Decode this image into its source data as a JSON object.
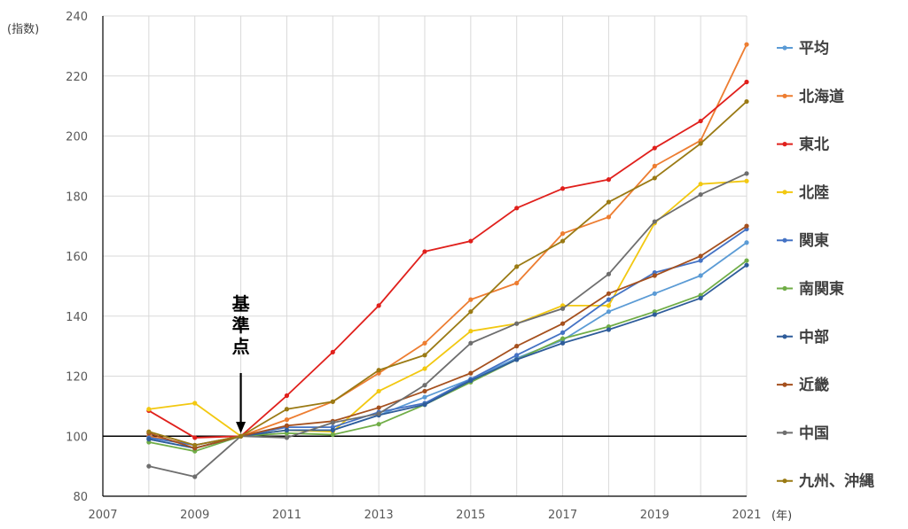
{
  "chart_data": {
    "type": "line",
    "y_unit": "(指数)",
    "x_unit": "(年)",
    "xlim": [
      2007,
      2021
    ],
    "ylim": [
      80,
      240
    ],
    "x_ticks": [
      "2007",
      "2009",
      "2011",
      "2013",
      "2015",
      "2017",
      "2019",
      "2021"
    ],
    "y_ticks": [
      "80",
      "100",
      "120",
      "140",
      "160",
      "180",
      "200",
      "220",
      "240"
    ],
    "grid": true,
    "legend_position": "right",
    "annotation": {
      "text": "基準点",
      "x": 2010,
      "y": 100
    },
    "reference_line": 100,
    "x": [
      2008,
      2009,
      2010,
      2011,
      2012,
      2013,
      2014,
      2015,
      2016,
      2017,
      2018,
      2019,
      2020,
      2021
    ],
    "series": [
      {
        "name": "平均",
        "color": "#5B9BD5",
        "values": [
          99,
          96,
          100,
          102,
          102,
          107,
          113,
          119,
          126,
          132,
          141.5,
          147.5,
          153.5,
          164.5
        ]
      },
      {
        "name": "北海道",
        "color": "#ED7D31",
        "values": [
          100,
          97,
          100,
          105.5,
          111.5,
          121,
          131,
          145.5,
          151,
          167.5,
          173,
          190,
          198.5,
          230.5
        ]
      },
      {
        "name": "東北",
        "color": "#E0201C",
        "values": [
          108.5,
          99.5,
          100,
          113.5,
          128,
          143.5,
          161.5,
          165,
          176,
          182.5,
          185.5,
          196,
          205,
          218
        ]
      },
      {
        "name": "北陸",
        "color": "#F2C811",
        "values": [
          109,
          111,
          100,
          102,
          101.5,
          115,
          122.5,
          135,
          137.5,
          143.5,
          143.5,
          171,
          184,
          185
        ]
      },
      {
        "name": "関東",
        "color": "#4472C4",
        "values": [
          99.5,
          97,
          100,
          103,
          103,
          108,
          111,
          119,
          127,
          134.5,
          145.5,
          154.5,
          158.5,
          169
        ]
      },
      {
        "name": "南関東",
        "color": "#70AD47",
        "values": [
          98,
          95,
          100,
          101,
          100.5,
          104,
          110.5,
          118,
          125.5,
          132.5,
          136.5,
          141.5,
          147,
          158.5
        ]
      },
      {
        "name": "中部",
        "color": "#2E5C9A",
        "values": [
          99,
          96,
          100,
          102,
          102,
          107,
          110.5,
          118.5,
          125.5,
          131,
          135.5,
          140.5,
          146,
          157
        ]
      },
      {
        "name": "近畿",
        "color": "#A5501E",
        "values": [
          101,
          96,
          100,
          103.5,
          105,
          109.5,
          115,
          121,
          130,
          137.5,
          147.5,
          153.5,
          160,
          170
        ]
      },
      {
        "name": "中国",
        "color": "#6E6E6E",
        "values": [
          90,
          86.5,
          100,
          99.5,
          104.5,
          107.5,
          117,
          131,
          137.5,
          142.5,
          154,
          171.5,
          180.5,
          187.5
        ]
      },
      {
        "name": "九州、沖縄",
        "color": "#9A7A14",
        "values": [
          101.5,
          97,
          100,
          109,
          111.5,
          122,
          127,
          141.5,
          156.5,
          165,
          178,
          186,
          197.5,
          211.5
        ]
      }
    ]
  }
}
